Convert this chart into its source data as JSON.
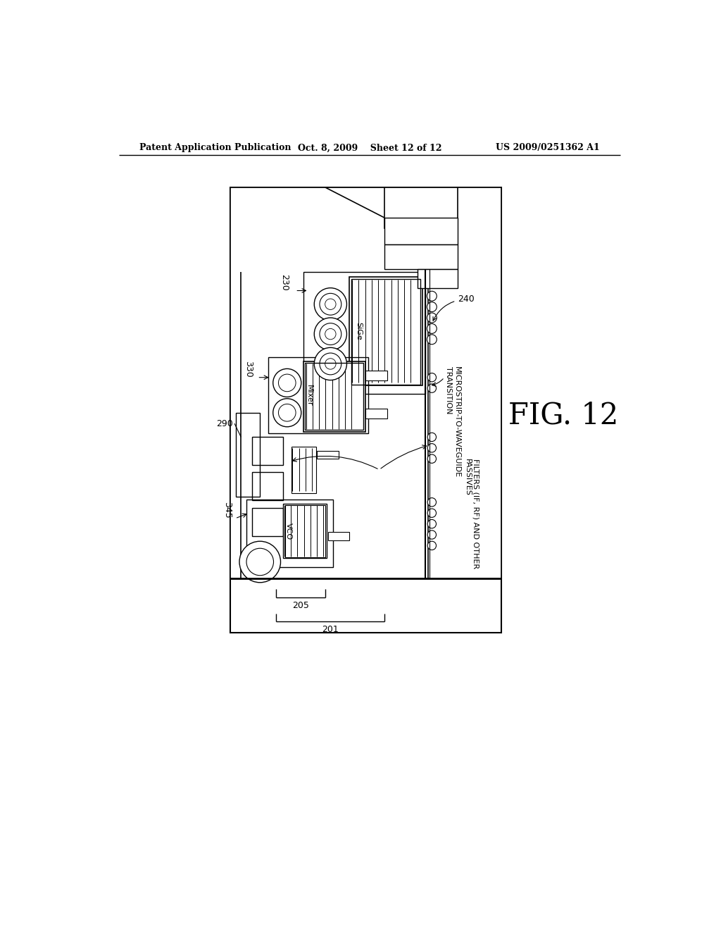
{
  "header_left": "Patent Application Publication",
  "header_center": "Oct. 8, 2009    Sheet 12 of 12",
  "header_right": "US 2009/0251362 A1",
  "fig_label": "FIG. 12",
  "bg_color": "#ffffff",
  "line_color": "#000000",
  "label_230": "230",
  "label_330": "330",
  "label_290": "290",
  "label_345": "345",
  "label_240": "240",
  "label_205": "205",
  "label_201": "201",
  "label_SiGe": "SiGe",
  "label_Mixer": "Mixer",
  "label_VCO": "VCO",
  "label_micro": "MICROSTRIP-TO-WAVEGUIDE\nTRANSITION",
  "label_filters": "FILTERS (IF, RF) AND OTHER\nPASSIVES"
}
